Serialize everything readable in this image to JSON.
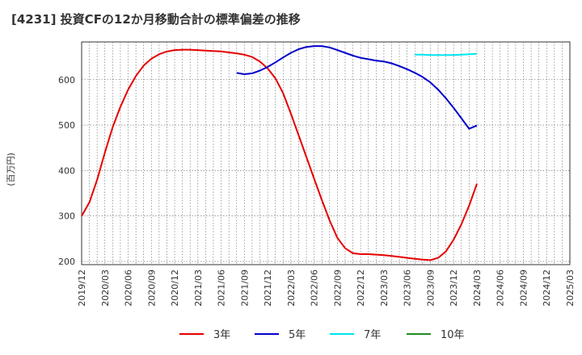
{
  "chart_data": {
    "type": "line",
    "title": "[4231]  投資CFの12か月移動合計の標準偏差の推移",
    "ylabel": "(百万円)",
    "xlabel": "",
    "ylim": [
      193,
      683
    ],
    "yticks": [
      200,
      300,
      400,
      500,
      600
    ],
    "x_start": "2019-12",
    "x_end": "2025-03",
    "xtick_labels": [
      "2019/12",
      "2020/03",
      "2020/06",
      "2020/09",
      "2020/12",
      "2021/03",
      "2021/06",
      "2021/09",
      "2021/12",
      "2022/03",
      "2022/06",
      "2022/09",
      "2022/12",
      "2023/03",
      "2023/06",
      "2023/09",
      "2023/12",
      "2024/03",
      "2024/06",
      "2024/09",
      "2024/12",
      "2025/03"
    ],
    "grid": true,
    "legend_position": "bottom",
    "series": [
      {
        "name": "3年",
        "color": "#e60000",
        "points": [
          [
            "2019-12",
            300
          ],
          [
            "2020-01",
            330
          ],
          [
            "2020-02",
            380
          ],
          [
            "2020-03",
            440
          ],
          [
            "2020-04",
            495
          ],
          [
            "2020-05",
            540
          ],
          [
            "2020-06",
            578
          ],
          [
            "2020-07",
            608
          ],
          [
            "2020-08",
            631
          ],
          [
            "2020-09",
            646
          ],
          [
            "2020-10",
            656
          ],
          [
            "2020-11",
            662
          ],
          [
            "2020-12",
            665
          ],
          [
            "2021-01",
            666
          ],
          [
            "2021-02",
            666
          ],
          [
            "2021-03",
            665
          ],
          [
            "2021-04",
            664
          ],
          [
            "2021-05",
            663
          ],
          [
            "2021-06",
            662
          ],
          [
            "2021-07",
            660
          ],
          [
            "2021-08",
            658
          ],
          [
            "2021-09",
            655
          ],
          [
            "2021-10",
            650
          ],
          [
            "2021-11",
            640
          ],
          [
            "2021-12",
            625
          ],
          [
            "2022-01",
            603
          ],
          [
            "2022-02",
            570
          ],
          [
            "2022-03",
            525
          ],
          [
            "2022-04",
            478
          ],
          [
            "2022-05",
            430
          ],
          [
            "2022-06",
            382
          ],
          [
            "2022-07",
            335
          ],
          [
            "2022-08",
            290
          ],
          [
            "2022-09",
            252
          ],
          [
            "2022-10",
            229
          ],
          [
            "2022-11",
            218
          ],
          [
            "2022-12",
            216
          ],
          [
            "2023-01",
            216
          ],
          [
            "2023-02",
            215
          ],
          [
            "2023-03",
            214
          ],
          [
            "2023-04",
            212
          ],
          [
            "2023-05",
            210
          ],
          [
            "2023-06",
            208
          ],
          [
            "2023-07",
            206
          ],
          [
            "2023-08",
            204
          ],
          [
            "2023-09",
            203
          ],
          [
            "2023-10",
            208
          ],
          [
            "2023-11",
            222
          ],
          [
            "2023-12",
            248
          ],
          [
            "2024-01",
            282
          ],
          [
            "2024-02",
            323
          ],
          [
            "2024-03",
            371
          ]
        ]
      },
      {
        "name": "5年",
        "color": "#0000cc",
        "points": [
          [
            "2021-08",
            615
          ],
          [
            "2021-09",
            612
          ],
          [
            "2021-10",
            614
          ],
          [
            "2021-11",
            620
          ],
          [
            "2021-12",
            628
          ],
          [
            "2022-01",
            638
          ],
          [
            "2022-02",
            649
          ],
          [
            "2022-03",
            659
          ],
          [
            "2022-04",
            667
          ],
          [
            "2022-05",
            672
          ],
          [
            "2022-06",
            674
          ],
          [
            "2022-07",
            674
          ],
          [
            "2022-08",
            671
          ],
          [
            "2022-09",
            665
          ],
          [
            "2022-10",
            659
          ],
          [
            "2022-11",
            653
          ],
          [
            "2022-12",
            648
          ],
          [
            "2023-01",
            645
          ],
          [
            "2023-02",
            642
          ],
          [
            "2023-03",
            640
          ],
          [
            "2023-04",
            636
          ],
          [
            "2023-05",
            630
          ],
          [
            "2023-06",
            623
          ],
          [
            "2023-07",
            615
          ],
          [
            "2023-08",
            606
          ],
          [
            "2023-09",
            594
          ],
          [
            "2023-10",
            578
          ],
          [
            "2023-11",
            559
          ],
          [
            "2023-12",
            538
          ],
          [
            "2024-01",
            515
          ],
          [
            "2024-02",
            492
          ],
          [
            "2024-03",
            499
          ]
        ]
      },
      {
        "name": "7年",
        "color": "#00e5ee",
        "points": [
          [
            "2023-07",
            655
          ],
          [
            "2023-08",
            655
          ],
          [
            "2023-09",
            654
          ],
          [
            "2023-10",
            654
          ],
          [
            "2023-11",
            654
          ],
          [
            "2023-12",
            654
          ],
          [
            "2024-01",
            655
          ],
          [
            "2024-02",
            656
          ],
          [
            "2024-03",
            657
          ]
        ]
      },
      {
        "name": "10年",
        "color": "#228b22",
        "points": []
      }
    ]
  }
}
